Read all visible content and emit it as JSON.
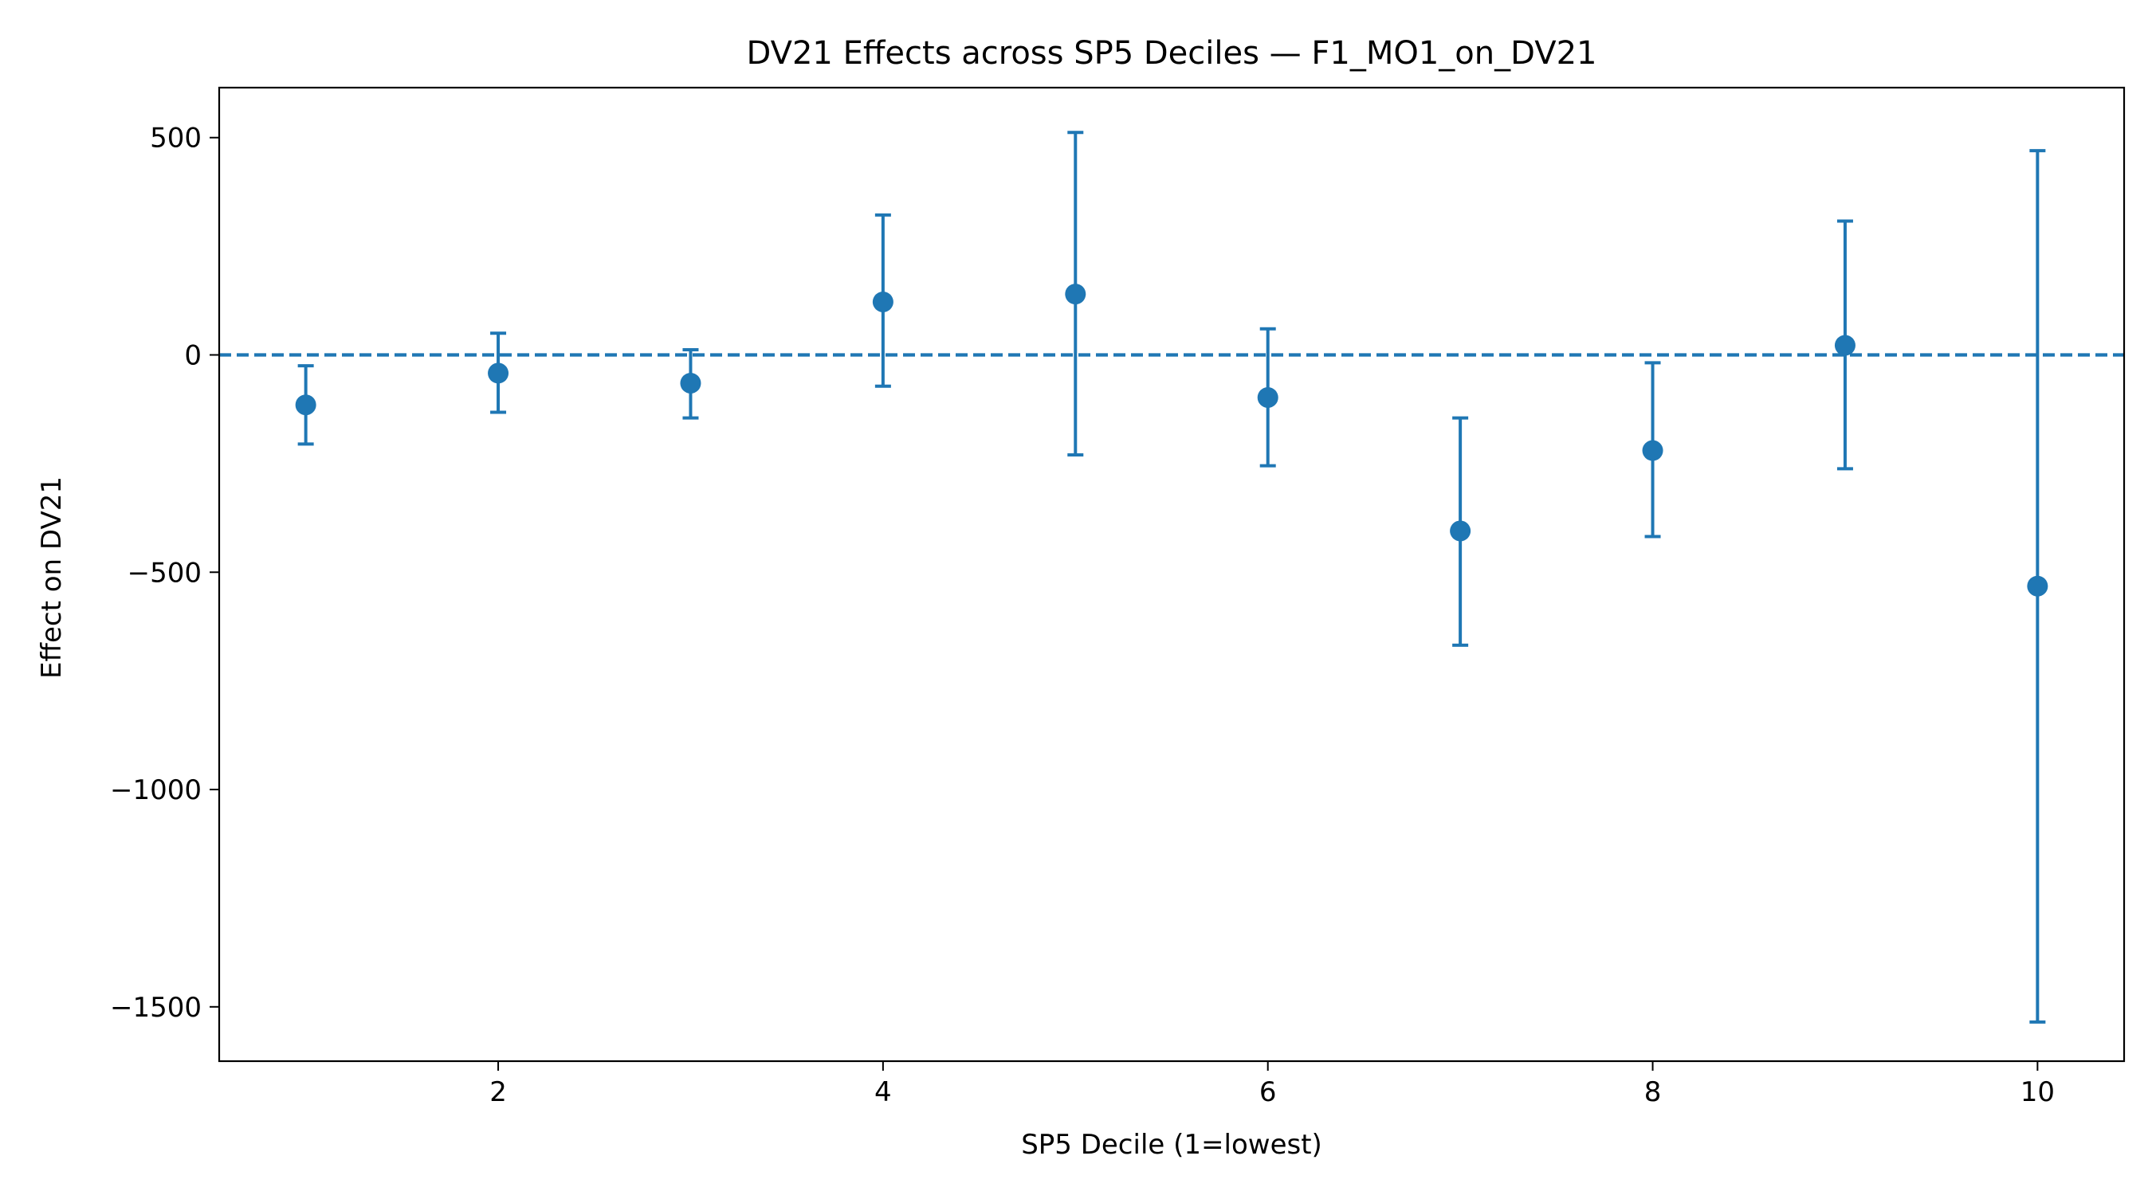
{
  "chart_data": {
    "type": "scatter",
    "title": "DV21 Effects across SP5 Deciles — F1_MO1_on_DV21",
    "xlabel": "SP5 Decile (1=lowest)",
    "ylabel": "Effect on DV21",
    "xlim": [
      0.55,
      10.45
    ],
    "ylim": [
      -1625,
      615
    ],
    "x_ticks": [
      2,
      4,
      6,
      8,
      10
    ],
    "x_tick_labels": [
      "2",
      "4",
      "6",
      "8",
      "10"
    ],
    "y_ticks": [
      500,
      0,
      -500,
      -1000,
      -1500
    ],
    "y_tick_labels": [
      "500",
      "0",
      "−500",
      "−1000",
      "−1500"
    ],
    "reference_line": {
      "y": 0,
      "style": "dashed"
    },
    "grid": false,
    "legend": "none",
    "color": "#1f77b4",
    "series": [
      {
        "points": [
          {
            "x": 1,
            "y": -115,
            "lower": -205,
            "upper": -25
          },
          {
            "x": 2,
            "y": -42,
            "lower": -132,
            "upper": 50
          },
          {
            "x": 3,
            "y": -65,
            "lower": -145,
            "upper": 12
          },
          {
            "x": 4,
            "y": 122,
            "lower": -72,
            "upper": 322
          },
          {
            "x": 5,
            "y": 140,
            "lower": -230,
            "upper": 512
          },
          {
            "x": 6,
            "y": -98,
            "lower": -255,
            "upper": 60
          },
          {
            "x": 7,
            "y": -405,
            "lower": -668,
            "upper": -145
          },
          {
            "x": 8,
            "y": -220,
            "lower": -418,
            "upper": -18
          },
          {
            "x": 9,
            "y": 22,
            "lower": -262,
            "upper": 308
          },
          {
            "x": 10,
            "y": -532,
            "lower": -1535,
            "upper": 470
          }
        ]
      }
    ]
  }
}
